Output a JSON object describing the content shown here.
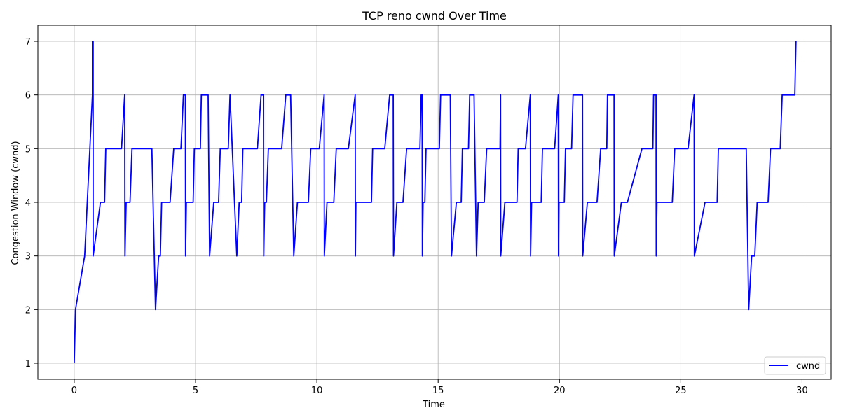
{
  "chart_data": {
    "type": "line",
    "title": "TCP reno cwnd Over Time",
    "xlabel": "Time",
    "ylabel": "Congestion Window (cwnd)",
    "xlim": [
      -1.5,
      31.2
    ],
    "ylim": [
      0.7,
      7.3
    ],
    "xticks": [
      0,
      5,
      10,
      15,
      20,
      25,
      30
    ],
    "yticks": [
      1,
      2,
      3,
      4,
      5,
      6,
      7
    ],
    "grid": true,
    "legend_position": "bottom-right",
    "series": [
      {
        "name": "cwnd",
        "color": "#0000ff",
        "points": [
          [
            0.0,
            1
          ],
          [
            0.05,
            2
          ],
          [
            0.43,
            3
          ],
          [
            0.75,
            6
          ],
          [
            0.75,
            7
          ],
          [
            0.78,
            7
          ],
          [
            0.78,
            3
          ],
          [
            1.08,
            4
          ],
          [
            1.25,
            4
          ],
          [
            1.3,
            5
          ],
          [
            1.95,
            5
          ],
          [
            2.08,
            6
          ],
          [
            2.09,
            3
          ],
          [
            2.14,
            4
          ],
          [
            2.3,
            4
          ],
          [
            2.38,
            5
          ],
          [
            3.2,
            5
          ],
          [
            3.35,
            2
          ],
          [
            3.48,
            3
          ],
          [
            3.55,
            3
          ],
          [
            3.6,
            4
          ],
          [
            3.95,
            4
          ],
          [
            4.1,
            5
          ],
          [
            4.4,
            5
          ],
          [
            4.5,
            6
          ],
          [
            4.58,
            6
          ],
          [
            4.59,
            3
          ],
          [
            4.62,
            4
          ],
          [
            4.9,
            4
          ],
          [
            4.95,
            5
          ],
          [
            5.2,
            5
          ],
          [
            5.24,
            6
          ],
          [
            5.52,
            6
          ],
          [
            5.58,
            3
          ],
          [
            5.75,
            4
          ],
          [
            5.95,
            4
          ],
          [
            6.02,
            5
          ],
          [
            6.35,
            5
          ],
          [
            6.42,
            6
          ],
          [
            6.7,
            3
          ],
          [
            6.8,
            4
          ],
          [
            6.9,
            4
          ],
          [
            6.95,
            5
          ],
          [
            7.55,
            5
          ],
          [
            7.7,
            6
          ],
          [
            7.8,
            6
          ],
          [
            7.81,
            3
          ],
          [
            7.85,
            4
          ],
          [
            7.92,
            4
          ],
          [
            8.0,
            5
          ],
          [
            8.55,
            5
          ],
          [
            8.72,
            6
          ],
          [
            8.92,
            6
          ],
          [
            9.05,
            3
          ],
          [
            9.2,
            4
          ],
          [
            9.65,
            4
          ],
          [
            9.75,
            5
          ],
          [
            10.1,
            5
          ],
          [
            10.3,
            6
          ],
          [
            10.31,
            3
          ],
          [
            10.42,
            4
          ],
          [
            10.7,
            4
          ],
          [
            10.8,
            5
          ],
          [
            11.3,
            5
          ],
          [
            11.58,
            6
          ],
          [
            11.59,
            3
          ],
          [
            11.61,
            4
          ],
          [
            12.25,
            4
          ],
          [
            12.3,
            5
          ],
          [
            12.8,
            5
          ],
          [
            13.0,
            6
          ],
          [
            13.15,
            6
          ],
          [
            13.16,
            3
          ],
          [
            13.3,
            4
          ],
          [
            13.55,
            4
          ],
          [
            13.7,
            5
          ],
          [
            14.25,
            5
          ],
          [
            14.3,
            6
          ],
          [
            14.34,
            6
          ],
          [
            14.35,
            3
          ],
          [
            14.38,
            4
          ],
          [
            14.45,
            4
          ],
          [
            14.5,
            5
          ],
          [
            15.05,
            5
          ],
          [
            15.1,
            6
          ],
          [
            15.5,
            6
          ],
          [
            15.55,
            3
          ],
          [
            15.75,
            4
          ],
          [
            15.95,
            4
          ],
          [
            16.0,
            5
          ],
          [
            16.25,
            5
          ],
          [
            16.3,
            6
          ],
          [
            16.48,
            6
          ],
          [
            16.58,
            3
          ],
          [
            16.65,
            4
          ],
          [
            16.9,
            4
          ],
          [
            17.0,
            5
          ],
          [
            17.55,
            5
          ],
          [
            17.57,
            6
          ],
          [
            17.58,
            3
          ],
          [
            17.75,
            4
          ],
          [
            18.25,
            4
          ],
          [
            18.3,
            5
          ],
          [
            18.6,
            5
          ],
          [
            18.8,
            6
          ],
          [
            18.81,
            3
          ],
          [
            18.85,
            4
          ],
          [
            19.25,
            4
          ],
          [
            19.3,
            5
          ],
          [
            19.8,
            5
          ],
          [
            19.95,
            6
          ],
          [
            19.96,
            3
          ],
          [
            19.98,
            4
          ],
          [
            20.2,
            4
          ],
          [
            20.25,
            5
          ],
          [
            20.5,
            5
          ],
          [
            20.56,
            6
          ],
          [
            20.95,
            6
          ],
          [
            20.96,
            3
          ],
          [
            21.15,
            4
          ],
          [
            21.55,
            4
          ],
          [
            21.7,
            5
          ],
          [
            21.95,
            5
          ],
          [
            21.98,
            6
          ],
          [
            22.25,
            6
          ],
          [
            22.26,
            3
          ],
          [
            22.55,
            4
          ],
          [
            22.8,
            4
          ],
          [
            23.4,
            5
          ],
          [
            23.85,
            5
          ],
          [
            23.88,
            6
          ],
          [
            23.98,
            6
          ],
          [
            23.99,
            3
          ],
          [
            24.02,
            4
          ],
          [
            24.65,
            4
          ],
          [
            24.75,
            5
          ],
          [
            25.3,
            5
          ],
          [
            25.55,
            6
          ],
          [
            25.56,
            3
          ],
          [
            26.0,
            4
          ],
          [
            26.5,
            4
          ],
          [
            26.55,
            5
          ],
          [
            27.7,
            5
          ],
          [
            27.8,
            2
          ],
          [
            27.92,
            3
          ],
          [
            28.05,
            3
          ],
          [
            28.15,
            4
          ],
          [
            28.6,
            4
          ],
          [
            28.7,
            5
          ],
          [
            29.1,
            5
          ],
          [
            29.18,
            6
          ],
          [
            29.7,
            6
          ],
          [
            29.75,
            7
          ]
        ]
      }
    ]
  }
}
